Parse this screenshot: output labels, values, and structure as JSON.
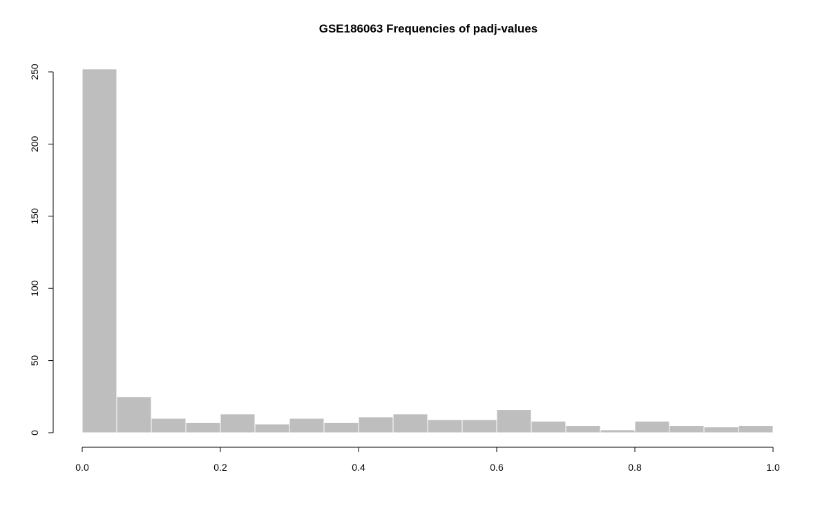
{
  "chart_data": {
    "type": "bar",
    "title": "GSE186063 Frequencies of padj-values",
    "xlabel": "",
    "ylabel": "",
    "bin_edges": [
      0.0,
      0.05,
      0.1,
      0.15,
      0.2,
      0.25,
      0.3,
      0.35,
      0.4,
      0.45,
      0.5,
      0.55,
      0.6,
      0.65,
      0.7,
      0.75,
      0.8,
      0.85,
      0.9,
      0.95,
      1.0
    ],
    "values": [
      252,
      25,
      10,
      7,
      13,
      6,
      10,
      7,
      11,
      13,
      9,
      9,
      16,
      8,
      5,
      2,
      8,
      5,
      4,
      5
    ],
    "xlim": [
      0,
      1
    ],
    "ylim": [
      0,
      250
    ],
    "x_ticks": [
      "0.0",
      "0.2",
      "0.4",
      "0.6",
      "0.8",
      "1.0"
    ],
    "y_ticks": [
      "0",
      "50",
      "100",
      "150",
      "200",
      "250"
    ],
    "bar_color": "#bebebe",
    "bar_border_color": "#ffffff",
    "grid": false,
    "legend": "none"
  }
}
